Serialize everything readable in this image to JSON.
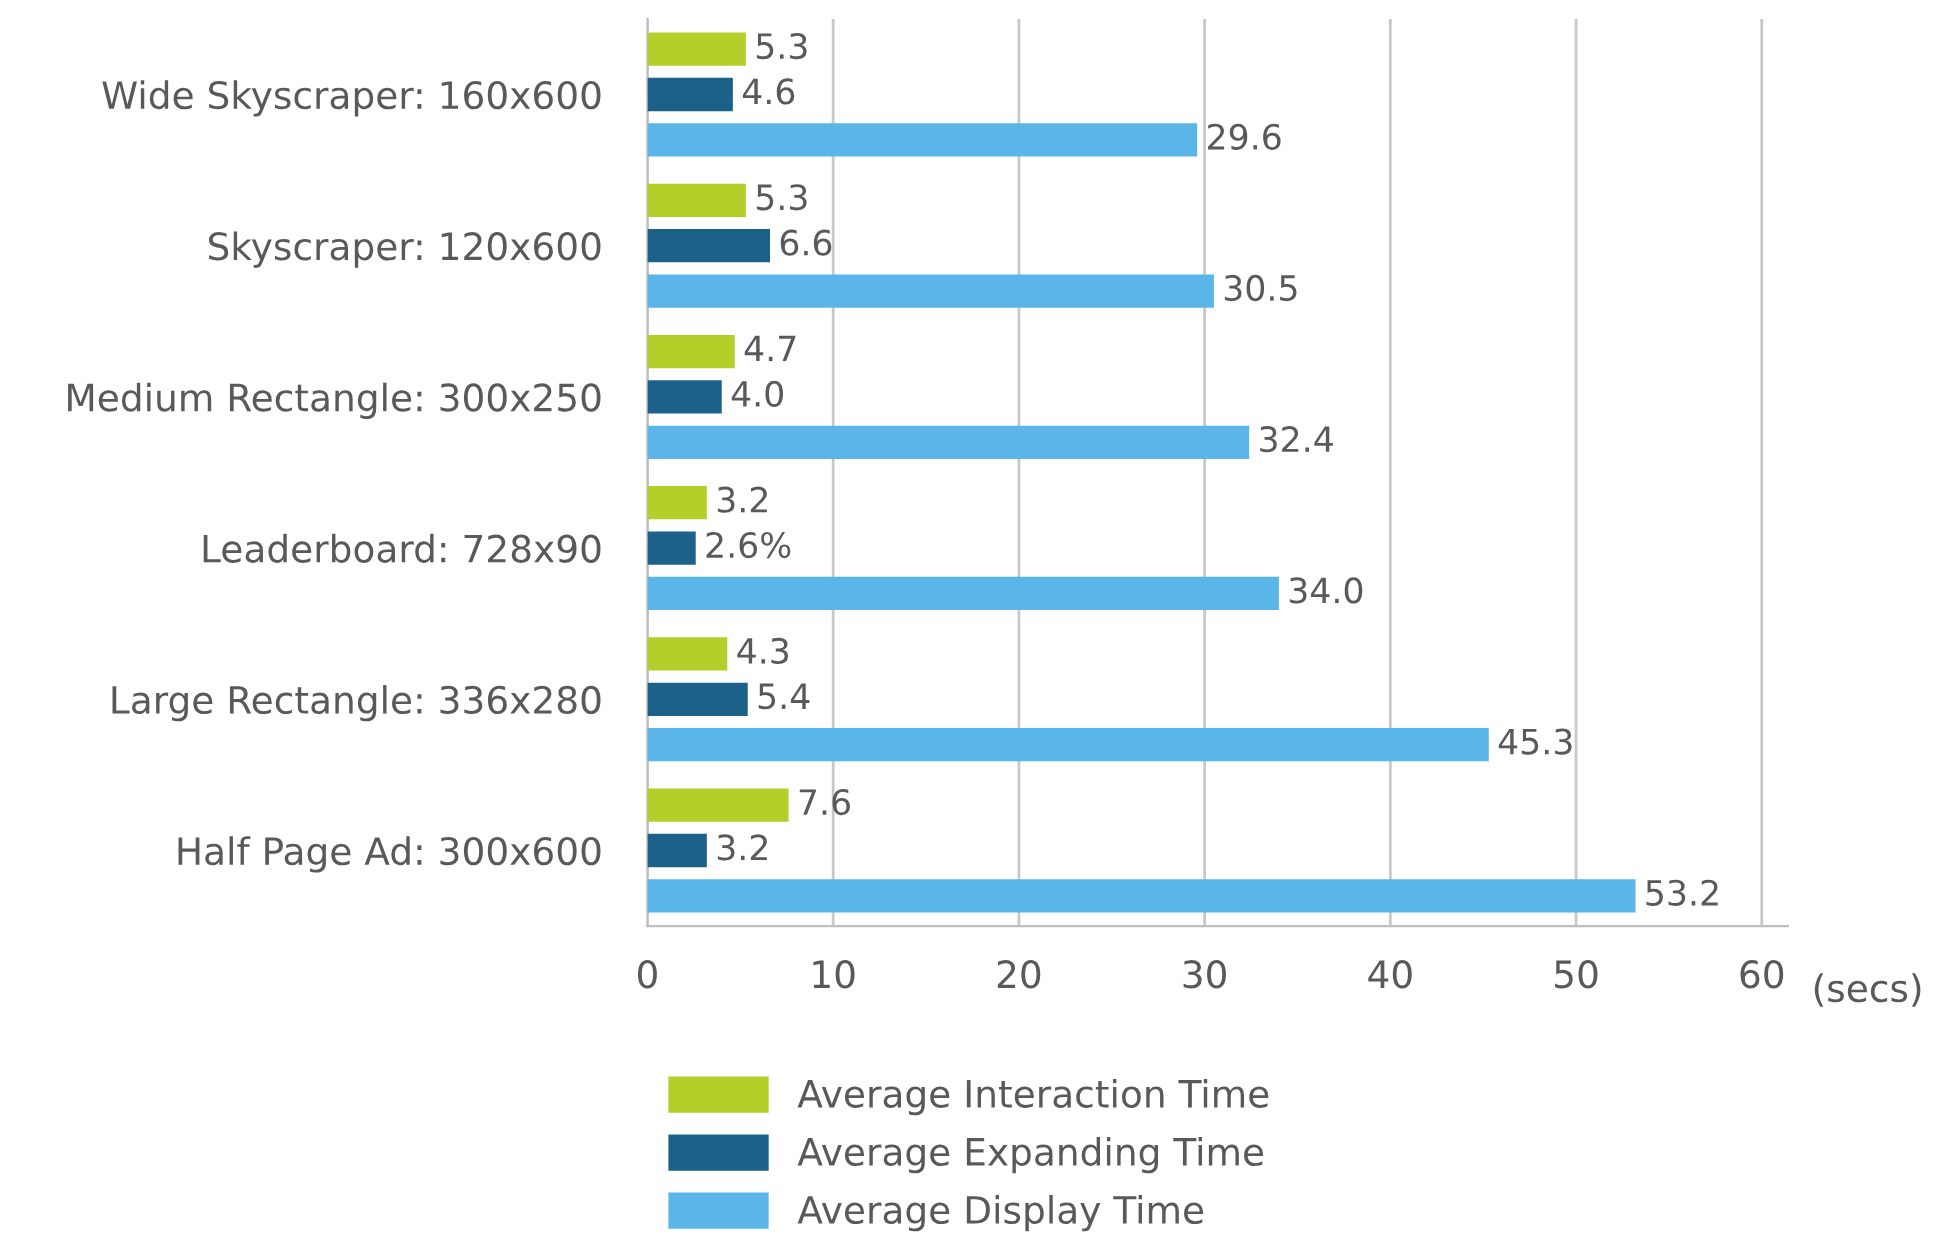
{
  "chart_data": {
    "type": "bar",
    "orientation": "horizontal",
    "xlabel": "(secs)",
    "categories": [
      "Wide Skyscraper: 160x600",
      "Skyscraper: 120x600",
      "Medium Rectangle: 300x250",
      "Leaderboard: 728x90",
      "Large Rectangle: 336x280",
      "Half Page Ad: 300x600"
    ],
    "series": [
      {
        "name": "Average Interaction Time",
        "color": "#b5cf2a",
        "values": [
          5.3,
          5.3,
          4.7,
          3.2,
          4.3,
          7.6
        ],
        "value_labels": [
          "5.3",
          "5.3",
          "4.7",
          "3.2",
          "4.3",
          "7.6"
        ]
      },
      {
        "name": "Average Expanding Time",
        "color": "#1c6188",
        "values": [
          4.6,
          6.6,
          4.0,
          2.6,
          5.4,
          3.2
        ],
        "value_labels": [
          "4.6",
          "6.6",
          "4.0",
          "2.6%",
          "5.4",
          "3.2"
        ]
      },
      {
        "name": "Average Display Time",
        "color": "#5ab5e8",
        "values": [
          29.6,
          30.5,
          32.4,
          34.0,
          45.3,
          53.2
        ],
        "value_labels": [
          "29.6",
          "30.5",
          "32.4",
          "34.0",
          "45.3",
          "53.2"
        ]
      }
    ],
    "xlim": [
      0,
      61.4
    ],
    "xticks": [
      0,
      10,
      20,
      30,
      40,
      50,
      60
    ],
    "grid": "x",
    "legend": "bottom"
  }
}
